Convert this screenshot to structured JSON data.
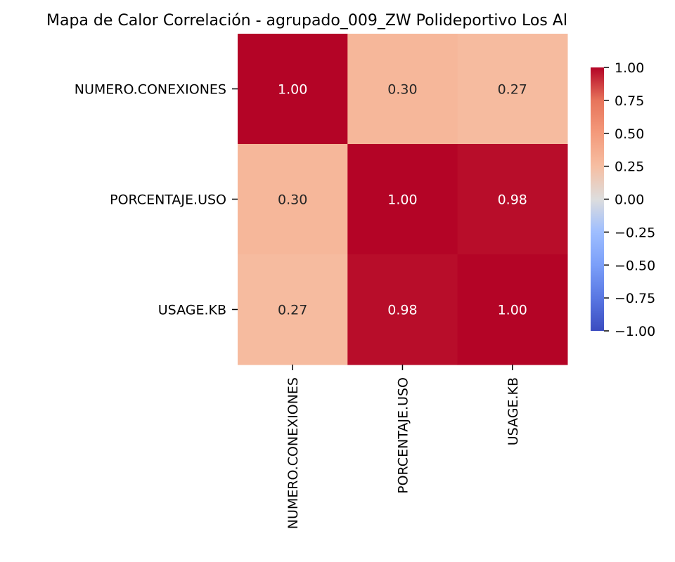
{
  "chart_data": {
    "type": "heatmap",
    "title": "Mapa de Calor Correlación - agrupado_009_ZW Polideportivo Los Al",
    "row_labels": [
      "NUMERO.CONEXIONES",
      "PORCENTAJE.USO",
      "USAGE.KB"
    ],
    "col_labels": [
      "NUMERO.CONEXIONES",
      "PORCENTAJE.USO",
      "USAGE.KB"
    ],
    "values": [
      [
        1.0,
        0.3,
        0.27
      ],
      [
        0.3,
        1.0,
        0.98
      ],
      [
        0.27,
        0.98,
        1.0
      ]
    ],
    "annotation_format": "0.00",
    "colormap": "coolwarm",
    "vmin": -1.0,
    "vmax": 1.0,
    "colorbar": {
      "position": "right",
      "ticks": [
        1.0,
        0.75,
        0.5,
        0.25,
        0.0,
        -0.25,
        -0.5,
        -0.75,
        -1.0
      ],
      "tick_labels": [
        "1.00",
        "0.75",
        "0.50",
        "0.25",
        "0.00",
        "−0.25",
        "−0.50",
        "−0.75",
        "−1.00"
      ]
    },
    "xlabel": "",
    "ylabel": "",
    "grid": false
  }
}
